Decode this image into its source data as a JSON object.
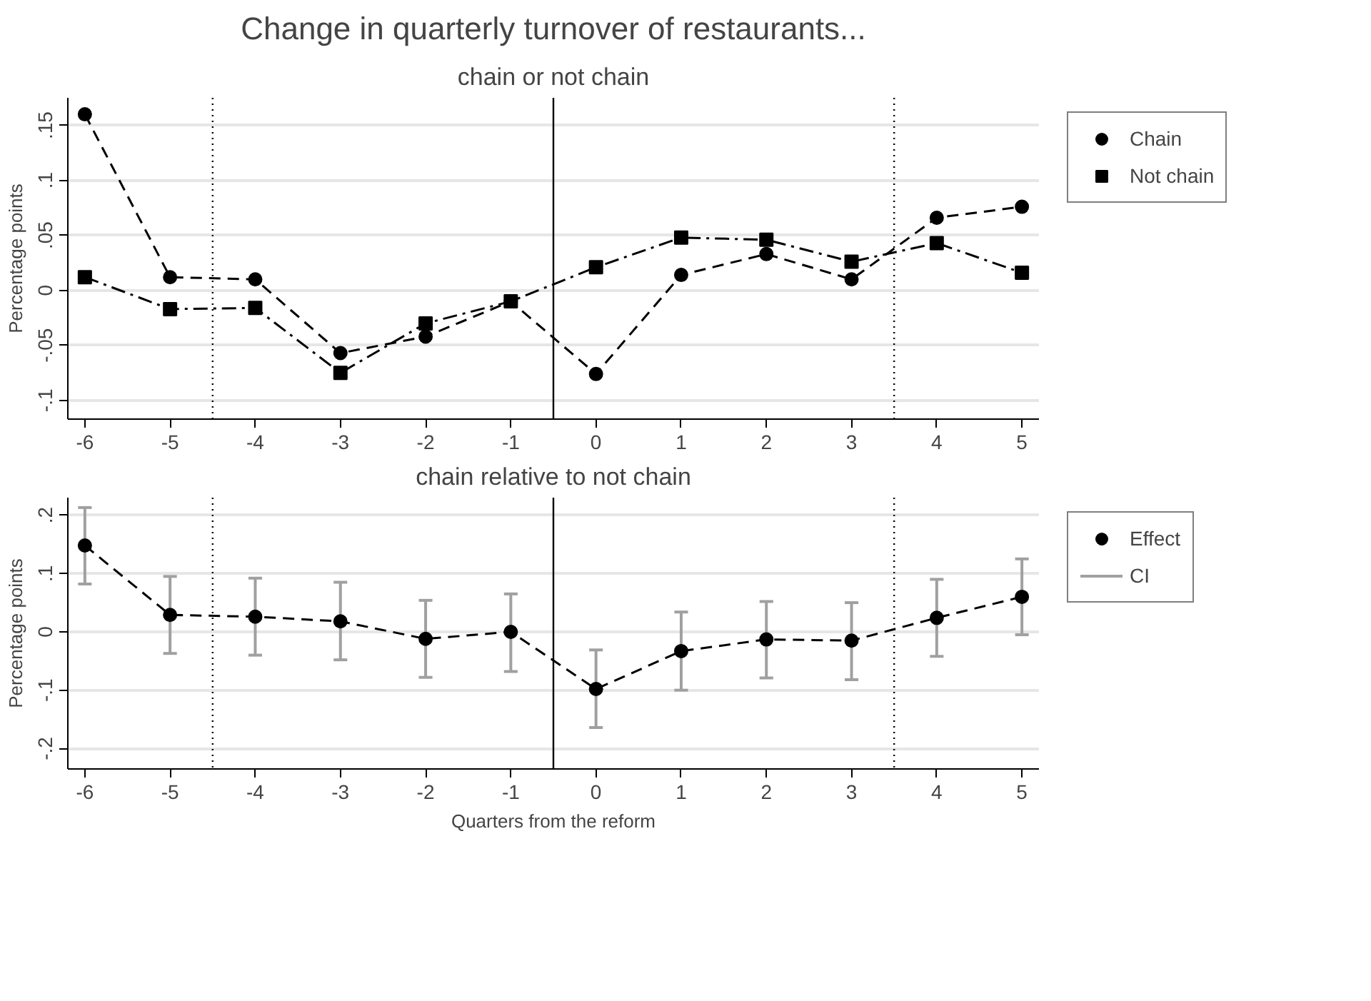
{
  "chart_data": [
    {
      "type": "line",
      "title": "Change in quarterly turnover of restaurants...",
      "subtitle": "chain or not chain",
      "ylabel": "Percentage points",
      "x": [
        -6,
        -5,
        -4,
        -3,
        -2,
        -1,
        0,
        1,
        2,
        3,
        4,
        5
      ],
      "series": [
        {
          "name": "Chain",
          "color": "#000000",
          "marker": "circle",
          "line_style": "dashed",
          "values": [
            0.16,
            0.012,
            0.01,
            -0.057,
            -0.042,
            -0.01,
            -0.076,
            0.014,
            0.033,
            0.01,
            0.066,
            0.076
          ]
        },
        {
          "name": "Not chain",
          "color": "#000000",
          "marker": "square",
          "line_style": "dashdot",
          "values": [
            0.012,
            -0.017,
            -0.016,
            -0.075,
            -0.03,
            -0.01,
            0.021,
            0.048,
            0.046,
            0.026,
            0.043,
            0.016
          ]
        }
      ],
      "xlim": [
        -6.2,
        5.2
      ],
      "xticks": [
        -6,
        -5,
        -4,
        -3,
        -2,
        -1,
        0,
        1,
        2,
        3,
        4,
        5
      ],
      "ylim": [
        -0.117,
        0.175
      ],
      "yticks": [
        {
          "value": -0.1,
          "label": "-.1"
        },
        {
          "value": -0.05,
          "label": "-.05"
        },
        0,
        {
          "value": 0.05,
          "label": ".05"
        },
        {
          "value": 0.1,
          "label": ".1"
        },
        {
          "value": 0.15,
          "label": ".15"
        }
      ],
      "ref_lines": [
        {
          "axis": "x",
          "value": -4.5,
          "line_style": "dotted"
        },
        {
          "axis": "x",
          "value": -0.5,
          "line_style": "solid"
        },
        {
          "axis": "x",
          "value": 3.5,
          "line_style": "dotted"
        }
      ],
      "grid": "y",
      "legend": "right"
    },
    {
      "type": "line",
      "title": "chain relative to not chain",
      "xlabel": "Quarters from the reform",
      "ylabel": "Percentage points",
      "x": [
        -6,
        -5,
        -4,
        -3,
        -2,
        -1,
        0,
        1,
        2,
        3,
        4,
        5
      ],
      "series": [
        {
          "name": "Effect",
          "color": "#000000",
          "marker": "circle",
          "line_style": "dashed",
          "values": [
            0.148,
            0.029,
            0.026,
            0.018,
            -0.012,
            0.0,
            -0.098,
            -0.033,
            -0.013,
            -0.015,
            0.024,
            0.06
          ],
          "errors": [
            [
              0.082,
              0.213
            ],
            [
              -0.037,
              0.095
            ],
            [
              -0.04,
              0.092
            ],
            [
              -0.048,
              0.085
            ],
            [
              -0.078,
              0.054
            ],
            [
              -0.068,
              0.065
            ],
            [
              -0.164,
              -0.031
            ],
            [
              -0.1,
              0.034
            ],
            [
              -0.079,
              0.052
            ],
            [
              -0.082,
              0.05
            ],
            [
              -0.042,
              0.09
            ],
            [
              -0.005,
              0.125
            ]
          ]
        }
      ],
      "xlim": [
        -6.2,
        5.2
      ],
      "xticks": [
        -6,
        -5,
        -4,
        -3,
        -2,
        -1,
        0,
        1,
        2,
        3,
        4,
        5
      ],
      "ylim": [
        -0.235,
        0.23
      ],
      "yticks": [
        {
          "value": -0.2,
          "label": "-.2"
        },
        {
          "value": -0.1,
          "label": "-.1"
        },
        0,
        {
          "value": 0.1,
          "label": ".1"
        },
        {
          "value": 0.2,
          "label": ".2"
        }
      ],
      "ref_lines": [
        {
          "axis": "x",
          "value": -4.5,
          "line_style": "dotted"
        },
        {
          "axis": "x",
          "value": -0.5,
          "line_style": "solid"
        },
        {
          "axis": "x",
          "value": 3.5,
          "line_style": "dotted"
        }
      ],
      "annotations": [
        "CI"
      ],
      "grid": "y",
      "legend": "right"
    }
  ]
}
